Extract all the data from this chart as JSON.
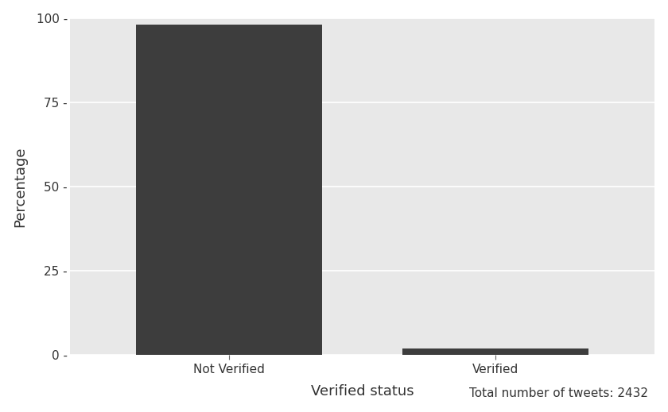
{
  "categories": [
    "Not Verified",
    "Verified"
  ],
  "values": [
    98.0,
    2.0
  ],
  "bar_color": "#3d3d3d",
  "background_color": "#e8e8e8",
  "panel_color": "#e8e8e8",
  "outer_background": "#ffffff",
  "xlabel": "Verified status",
  "ylabel": "Percentage",
  "ylim": [
    0,
    100
  ],
  "yticks": [
    0,
    25,
    50,
    75,
    100
  ],
  "annotation": "Total number of tweets: 2432",
  "bar_width": 0.7,
  "grid_color": "#ffffff",
  "tick_color": "#666666"
}
